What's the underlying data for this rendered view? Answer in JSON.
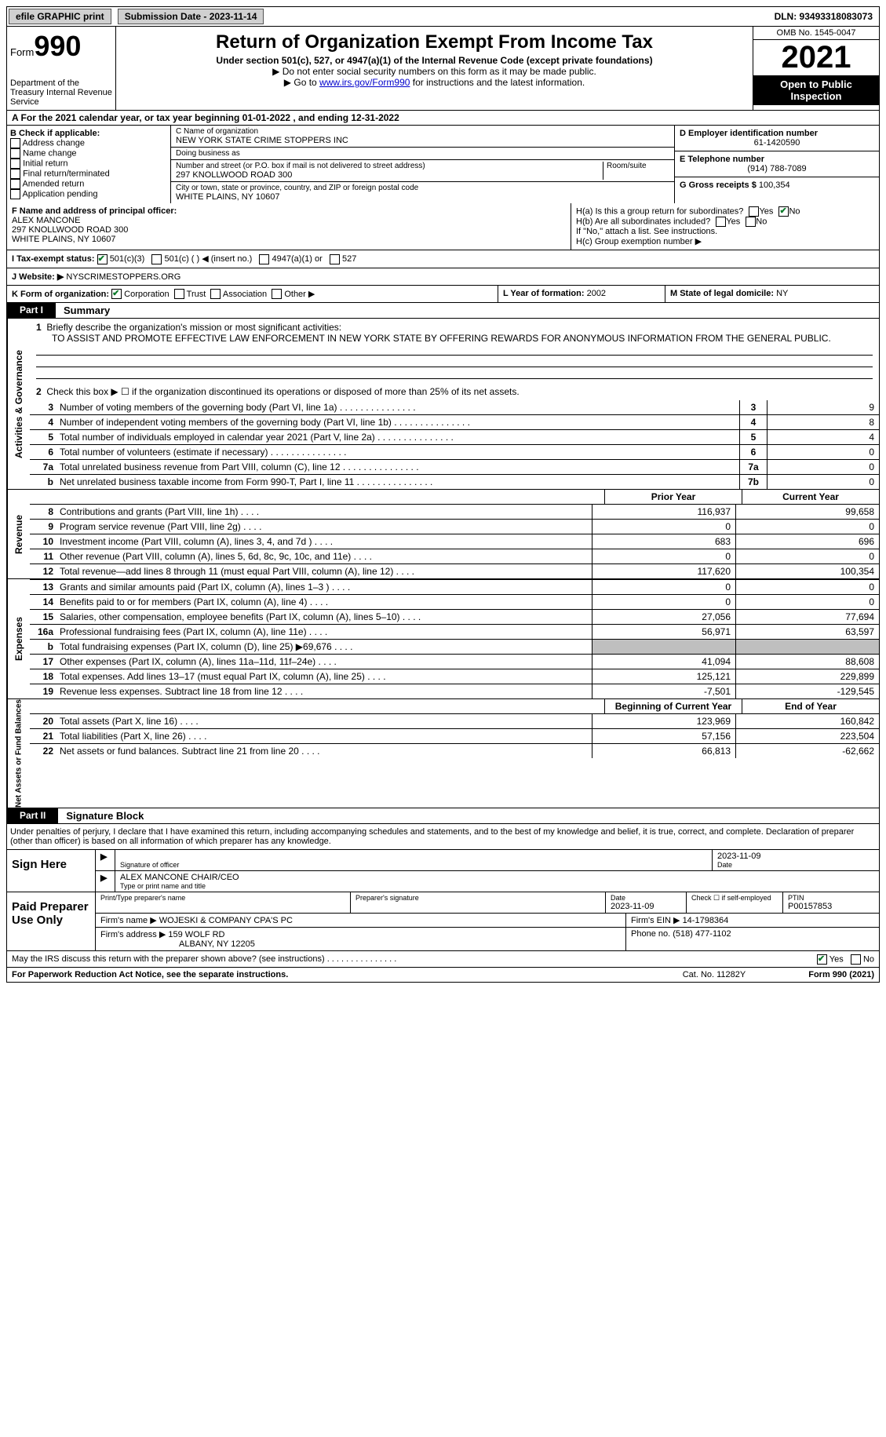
{
  "topbar": {
    "btn1": "efile GRAPHIC print",
    "btn2": "Submission Date - 2023-11-14",
    "dln": "DLN: 93493318083073"
  },
  "header": {
    "form_prefix": "Form",
    "form_num": "990",
    "dept": "Department of the Treasury\nInternal Revenue Service",
    "title": "Return of Organization Exempt From Income Tax",
    "sub1": "Under section 501(c), 527, or 4947(a)(1) of the Internal Revenue Code (except private foundations)",
    "sub2": "▶ Do not enter social security numbers on this form as it may be made public.",
    "sub3_pre": "▶ Go to ",
    "sub3_link": "www.irs.gov/Form990",
    "sub3_post": " for instructions and the latest information.",
    "omb": "OMB No. 1545-0047",
    "year": "2021",
    "pubins": "Open to Public Inspection"
  },
  "line_a": "A For the 2021 calendar year, or tax year beginning 01-01-2022   , and ending 12-31-2022",
  "box_b": {
    "title": "B Check if applicable:",
    "opts": [
      "Address change",
      "Name change",
      "Initial return",
      "Final return/terminated",
      "Amended return",
      "Application pending"
    ]
  },
  "box_c": {
    "name_lbl": "C Name of organization",
    "name": "NEW YORK STATE CRIME STOPPERS INC",
    "dba_lbl": "Doing business as",
    "dba": "",
    "addr_lbl": "Number and street (or P.O. box if mail is not delivered to street address)",
    "addr": "297 KNOLLWOOD ROAD 300",
    "room_lbl": "Room/suite",
    "city_lbl": "City or town, state or province, country, and ZIP or foreign postal code",
    "city": "WHITE PLAINS, NY  10607"
  },
  "box_d": {
    "lbl": "D Employer identification number",
    "val": "61-1420590"
  },
  "box_e": {
    "lbl": "E Telephone number",
    "val": "(914) 788-7089"
  },
  "box_g": {
    "lbl": "G Gross receipts $",
    "val": "100,354"
  },
  "box_f": {
    "lbl": "F Name and address of principal officer:",
    "name": "ALEX MANCONE",
    "addr": "297 KNOLLWOOD ROAD 300",
    "city": "WHITE PLAINS, NY  10607"
  },
  "box_h": {
    "ha": "H(a)  Is this a group return for subordinates?",
    "hb": "H(b)  Are all subordinates included?",
    "hb2": "If \"No,\" attach a list. See instructions.",
    "hc": "H(c)  Group exemption number ▶",
    "yes": "Yes",
    "no": "No"
  },
  "line_i": {
    "lbl": "I   Tax-exempt status:",
    "o1": "501(c)(3)",
    "o2": "501(c) (  ) ◀ (insert no.)",
    "o3": "4947(a)(1) or",
    "o4": "527"
  },
  "line_j": {
    "lbl": "J   Website: ▶",
    "val": "NYSCRIMESTOPPERS.ORG"
  },
  "line_k": {
    "lbl": "K Form of organization:",
    "o1": "Corporation",
    "o2": "Trust",
    "o3": "Association",
    "o4": "Other ▶"
  },
  "line_l": {
    "lbl": "L Year of formation:",
    "val": "2002"
  },
  "line_m": {
    "lbl": "M State of legal domicile:",
    "val": "NY"
  },
  "part1": {
    "num": "Part I",
    "title": "Summary"
  },
  "summary": {
    "tab1": "Activities & Governance",
    "l1": "Briefly describe the organization's mission or most significant activities:",
    "l1v": "TO ASSIST AND PROMOTE EFFECTIVE LAW ENFORCEMENT IN NEW YORK STATE BY OFFERING REWARDS FOR ANONYMOUS INFORMATION FROM THE GENERAL PUBLIC.",
    "l2": "Check this box ▶ ☐ if the organization discontinued its operations or disposed of more than 25% of its net assets.",
    "lines_ag": [
      {
        "n": "3",
        "d": "Number of voting members of the governing body (Part VI, line 1a)",
        "b": "3",
        "v": "9"
      },
      {
        "n": "4",
        "d": "Number of independent voting members of the governing body (Part VI, line 1b)",
        "b": "4",
        "v": "8"
      },
      {
        "n": "5",
        "d": "Total number of individuals employed in calendar year 2021 (Part V, line 2a)",
        "b": "5",
        "v": "4"
      },
      {
        "n": "6",
        "d": "Total number of volunteers (estimate if necessary)",
        "b": "6",
        "v": "0"
      },
      {
        "n": "7a",
        "d": "Total unrelated business revenue from Part VIII, column (C), line 12",
        "b": "7a",
        "v": "0"
      },
      {
        "n": "b",
        "d": "Net unrelated business taxable income from Form 990-T, Part I, line 11",
        "b": "7b",
        "v": "0"
      }
    ],
    "tab2": "Revenue",
    "hdr": {
      "pc": "Prior Year",
      "cc": "Current Year"
    },
    "rev": [
      {
        "n": "8",
        "d": "Contributions and grants (Part VIII, line 1h)",
        "pc": "116,937",
        "cc": "99,658"
      },
      {
        "n": "9",
        "d": "Program service revenue (Part VIII, line 2g)",
        "pc": "0",
        "cc": "0"
      },
      {
        "n": "10",
        "d": "Investment income (Part VIII, column (A), lines 3, 4, and 7d )",
        "pc": "683",
        "cc": "696"
      },
      {
        "n": "11",
        "d": "Other revenue (Part VIII, column (A), lines 5, 6d, 8c, 9c, 10c, and 11e)",
        "pc": "0",
        "cc": "0"
      },
      {
        "n": "12",
        "d": "Total revenue—add lines 8 through 11 (must equal Part VIII, column (A), line 12)",
        "pc": "117,620",
        "cc": "100,354"
      }
    ],
    "tab3": "Expenses",
    "exp": [
      {
        "n": "13",
        "d": "Grants and similar amounts paid (Part IX, column (A), lines 1–3 )",
        "pc": "0",
        "cc": "0"
      },
      {
        "n": "14",
        "d": "Benefits paid to or for members (Part IX, column (A), line 4)",
        "pc": "0",
        "cc": "0"
      },
      {
        "n": "15",
        "d": "Salaries, other compensation, employee benefits (Part IX, column (A), lines 5–10)",
        "pc": "27,056",
        "cc": "77,694"
      },
      {
        "n": "16a",
        "d": "Professional fundraising fees (Part IX, column (A), line 11e)",
        "pc": "56,971",
        "cc": "63,597"
      },
      {
        "n": "b",
        "d": "Total fundraising expenses (Part IX, column (D), line 25) ▶69,676",
        "pc": "",
        "cc": "",
        "shade": true
      },
      {
        "n": "17",
        "d": "Other expenses (Part IX, column (A), lines 11a–11d, 11f–24e)",
        "pc": "41,094",
        "cc": "88,608"
      },
      {
        "n": "18",
        "d": "Total expenses. Add lines 13–17 (must equal Part IX, column (A), line 25)",
        "pc": "125,121",
        "cc": "229,899"
      },
      {
        "n": "19",
        "d": "Revenue less expenses. Subtract line 18 from line 12",
        "pc": "-7,501",
        "cc": "-129,545"
      }
    ],
    "tab4": "Net Assets or Fund Balances",
    "hdr2": {
      "pc": "Beginning of Current Year",
      "cc": "End of Year"
    },
    "na": [
      {
        "n": "20",
        "d": "Total assets (Part X, line 16)",
        "pc": "123,969",
        "cc": "160,842"
      },
      {
        "n": "21",
        "d": "Total liabilities (Part X, line 26)",
        "pc": "57,156",
        "cc": "223,504"
      },
      {
        "n": "22",
        "d": "Net assets or fund balances. Subtract line 21 from line 20",
        "pc": "66,813",
        "cc": "-62,662"
      }
    ]
  },
  "part2": {
    "num": "Part II",
    "title": "Signature Block"
  },
  "perjury": "Under penalties of perjury, I declare that I have examined this return, including accompanying schedules and statements, and to the best of my knowledge and belief, it is true, correct, and complete. Declaration of preparer (other than officer) is based on all information of which preparer has any knowledge.",
  "sign": {
    "row1_lbl": "Sign Here",
    "sig_lbl": "Signature of officer",
    "date_lbl": "Date",
    "date": "2023-11-09",
    "name": "ALEX MANCONE  CHAIR/CEO",
    "name_lbl": "Type or print name and title"
  },
  "paid": {
    "row_lbl": "Paid Preparer Use Only",
    "print_lbl": "Print/Type preparer's name",
    "sig_lbl": "Preparer's signature",
    "date_lbl": "Date",
    "date": "2023-11-09",
    "self_lbl": "Check ☐ if self-employed",
    "ptin_lbl": "PTIN",
    "ptin": "P00157853",
    "firm_name_lbl": "Firm's name    ▶",
    "firm_name": "WOJESKI & COMPANY CPA'S PC",
    "firm_ein_lbl": "Firm's EIN ▶",
    "firm_ein": "14-1798364",
    "firm_addr_lbl": "Firm's address ▶",
    "firm_addr": "159 WOLF RD",
    "firm_city": "ALBANY, NY  12205",
    "phone_lbl": "Phone no.",
    "phone": "(518) 477-1102"
  },
  "may_irs": {
    "q": "May the IRS discuss this return with the preparer shown above? (see instructions)",
    "yes": "Yes",
    "no": "No"
  },
  "footer": {
    "l": "For Paperwork Reduction Act Notice, see the separate instructions.",
    "m": "Cat. No. 11282Y",
    "r": "Form 990 (2021)"
  },
  "colors": {
    "link": "#0000cc",
    "check": "#0a7a2a",
    "shade": "#bfbfbf"
  }
}
